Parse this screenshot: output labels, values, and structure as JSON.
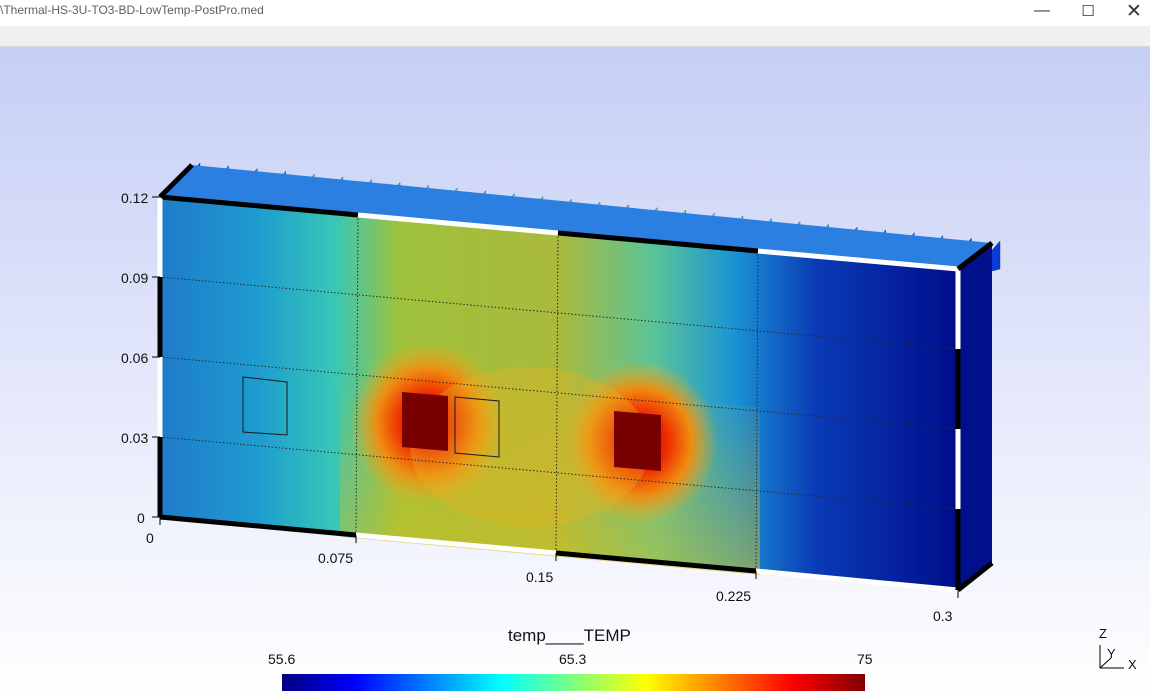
{
  "window": {
    "title": "\\Thermal-HS-3U-TO3-BD-LowTemp-PostPro.med",
    "min_glyph": "—",
    "max_glyph": "☐",
    "close_glyph": "✕"
  },
  "plot": {
    "y_ticks": [
      "0.12",
      "0.09",
      "0.06",
      "0.03",
      "0"
    ],
    "x_ticks": [
      "0",
      "0.075",
      "0.15",
      "0.225",
      "0.3"
    ]
  },
  "legend": {
    "title": "temp____TEMP",
    "min_label": "55.6",
    "mid_label": "65.3",
    "max_label": "75",
    "colormap": [
      "#00007f",
      "#0000ff",
      "#007fff",
      "#00ffff",
      "#7fff7f",
      "#ffff00",
      "#ff7f00",
      "#ff0000",
      "#7f0000"
    ]
  },
  "triad": {
    "z": "Z",
    "y": "Y",
    "x": "X"
  }
}
